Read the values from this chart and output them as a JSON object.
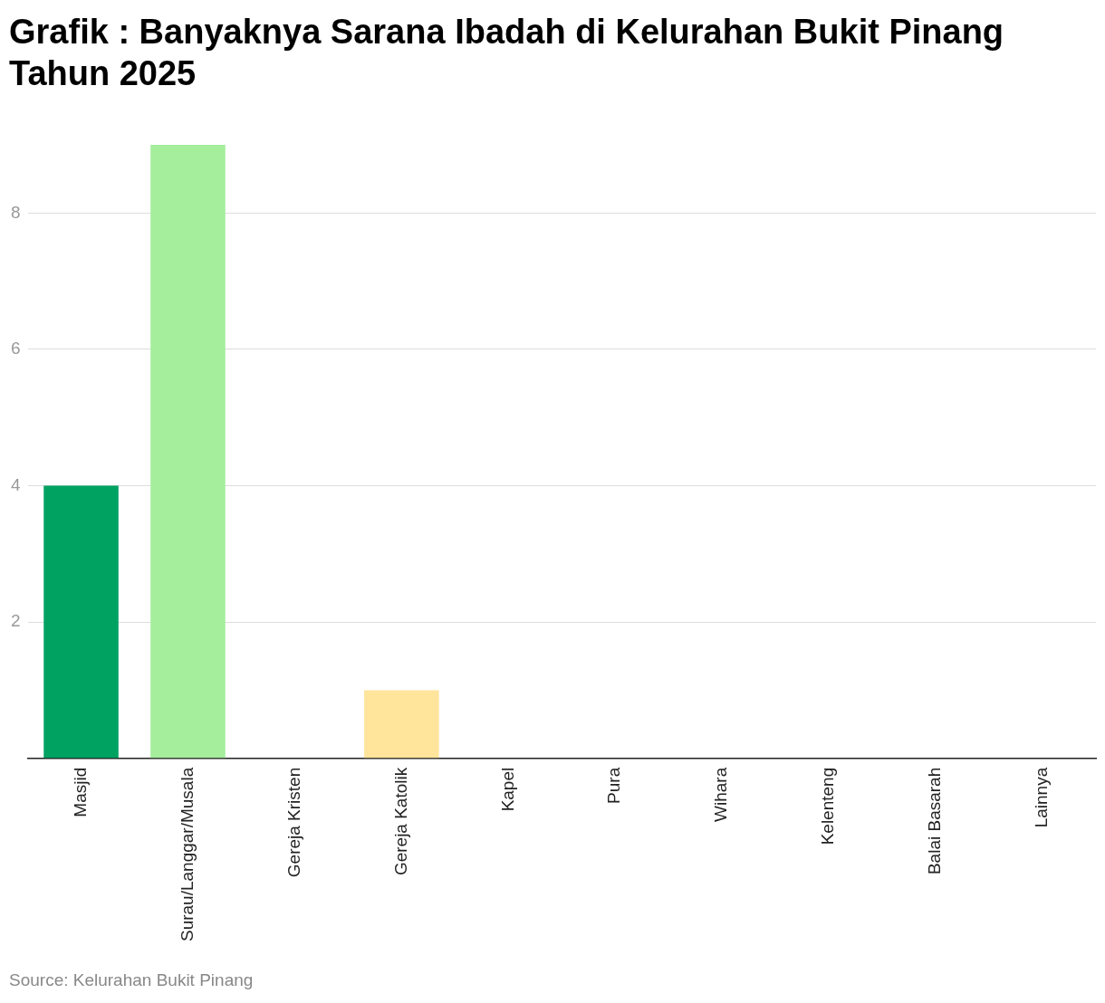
{
  "chart_data": {
    "type": "bar",
    "title": "Grafik : Banyaknya Sarana Ibadah di Kelurahan Bukit Pinang Tahun 2025",
    "categories": [
      "Masjid",
      "Surau/Langgar/Musala",
      "Gereja Kristen",
      "Gereja Katolik",
      "Kapel",
      "Pura",
      "Wihara",
      "Kelenteng",
      "Balai Basarah",
      "Lainnya"
    ],
    "values": [
      4,
      9,
      0,
      1,
      0,
      0,
      0,
      0,
      0,
      0
    ],
    "colors": [
      "#00a262",
      "#a4ee9c",
      null,
      "#ffe49c",
      null,
      null,
      null,
      null,
      null,
      null
    ],
    "ylim": [
      0,
      9
    ],
    "yticks": [
      {
        "value": 0,
        "label": null
      },
      2,
      4,
      6,
      8
    ],
    "grid": "y",
    "legend": false,
    "annotations": [
      "Source: Kelurahan Bukit Pinang"
    ]
  }
}
